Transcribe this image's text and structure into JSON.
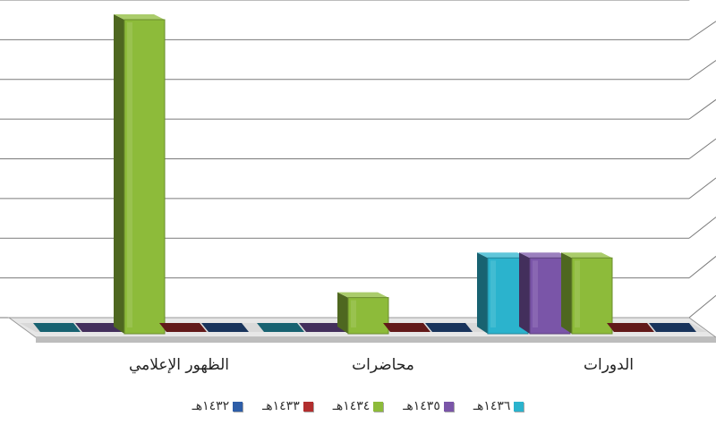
{
  "chart_data": {
    "type": "bar",
    "categories": [
      "الظهور الإعلامي",
      "محاضرات",
      "الدورات"
    ],
    "series": [
      {
        "name": "١٤٣٦هـ",
        "color": "#2BB3CD",
        "values": [
          0,
          0,
          2
        ]
      },
      {
        "name": "١٤٣٥هـ",
        "color": "#7A55A8",
        "values": [
          0,
          0,
          2
        ]
      },
      {
        "name": "١٤٣٤هـ",
        "color": "#8DBB3A",
        "values": [
          8,
          1,
          2
        ]
      },
      {
        "name": "١٤٣٣هـ",
        "color": "#B22E2E",
        "values": [
          0,
          0,
          0
        ]
      },
      {
        "name": "١٤٣٢هـ",
        "color": "#2E5EA8",
        "values": [
          0,
          0,
          0
        ]
      }
    ],
    "ylim": [
      0,
      8
    ],
    "grid": true,
    "legend_position": "bottom"
  }
}
